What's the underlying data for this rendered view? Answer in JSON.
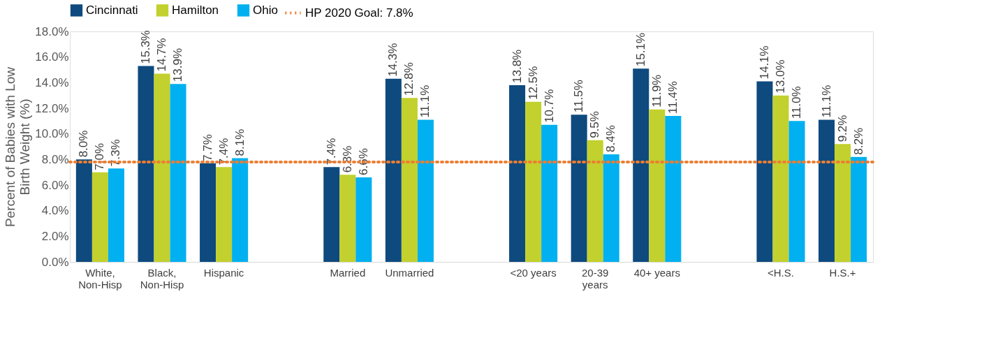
{
  "chart_data": {
    "type": "bar",
    "ylabel": "Percent of Babies with Low Birth Weight (%)",
    "categories": [
      "White,\nNon-Hisp",
      "Black,\nNon-Hisp",
      "Hispanic",
      null,
      "Married",
      "Unmarried",
      null,
      "<20 years",
      "20-39\nyears",
      "40+ years",
      null,
      "<H.S.",
      "H.S.+"
    ],
    "series": [
      {
        "name": "Cincinnati",
        "color": "#0e4a7e",
        "values": [
          8.0,
          15.3,
          7.7,
          null,
          7.4,
          14.3,
          null,
          13.8,
          11.5,
          15.1,
          null,
          14.1,
          11.1
        ],
        "value_labels": [
          "8.0%",
          "15.3%",
          "7.7%",
          null,
          "7.4%",
          "14.3%",
          null,
          "13.8%",
          "11.5%",
          "15.1%",
          null,
          "14.1%",
          "11.1%"
        ]
      },
      {
        "name": "Hamilton",
        "color": "#c2d12d",
        "values": [
          7.0,
          14.7,
          7.4,
          null,
          6.8,
          12.8,
          null,
          12.5,
          9.5,
          11.9,
          null,
          13.0,
          9.2
        ],
        "value_labels": [
          "7.0%",
          "14.7%",
          "7.4%",
          null,
          "6.8%",
          "12.8%",
          null,
          "12.5%",
          "9.5%",
          "11.9%",
          null,
          "13.0%",
          "9.2%"
        ]
      },
      {
        "name": "Ohio",
        "color": "#00b0f0",
        "values": [
          7.3,
          13.9,
          8.1,
          null,
          6.6,
          11.1,
          null,
          10.7,
          8.4,
          11.4,
          null,
          11.0,
          8.2
        ],
        "value_labels": [
          "7.3%",
          "13.9%",
          "8.1%",
          null,
          "6.6%",
          "11.1%",
          null,
          "10.7%",
          "8.4%",
          "11.4%",
          null,
          "11.0%",
          "8.2%"
        ]
      }
    ],
    "ylim": [
      0,
      18
    ],
    "yticks": [
      {
        "value": 0,
        "label": "0.0%"
      },
      {
        "value": 2,
        "label": "2.0%"
      },
      {
        "value": 4,
        "label": "4.0%"
      },
      {
        "value": 6,
        "label": "6.0%"
      },
      {
        "value": 8,
        "label": "8.0%"
      },
      {
        "value": 10,
        "label": "10.0%"
      },
      {
        "value": 12,
        "label": "12.0%"
      },
      {
        "value": 14,
        "label": "14.0%"
      },
      {
        "value": 16,
        "label": "16.0%"
      },
      {
        "value": 18,
        "label": "18.0%"
      }
    ],
    "ref_lines": [
      {
        "axis": "y",
        "value": 7.8,
        "label": "HP 2020 Goal: 7.8%",
        "color": "#ed7d31",
        "line_style": "dotted"
      }
    ],
    "grid": false,
    "legend": "top"
  }
}
